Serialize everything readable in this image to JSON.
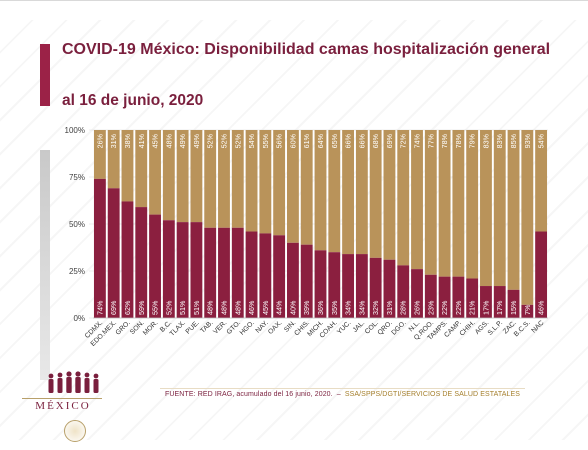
{
  "header": {
    "title": "COVID-19 México: Disponibilidad camas hospitalización general",
    "subtitle": "al 16 de junio, 2020"
  },
  "colors": {
    "occupied": "#8b1f3f",
    "available": "#b9935a",
    "title": "#7a1f3d"
  },
  "footer": {
    "source": "FUENTE: RED IRAG, acumulado del 16 junio, 2020.",
    "separator": "–",
    "org": "SSA/SPPS/DGTI/SERVICIOS DE SALUD ESTATALES"
  },
  "logo": {
    "wordmark": "MÉXICO"
  },
  "chart_data": {
    "type": "bar",
    "stacked": true,
    "title": "",
    "xlabel": "",
    "ylabel": "",
    "ylim": [
      0,
      100
    ],
    "yticks": [
      "0%",
      "25%",
      "50%",
      "75%",
      "100%"
    ],
    "categories": [
      "CDMX.",
      "EDO.MEX.",
      "GRO.",
      "SON.",
      "MOR.",
      "B.C.",
      "TLAX.",
      "PUE.",
      "TAB.",
      "VER.",
      "GTO.",
      "HGO.",
      "NAY.",
      "OAX.",
      "SIN.",
      "CHIS.",
      "MICH.",
      "COAH.",
      "YUC.",
      "JAL.",
      "COL.",
      "QRO.",
      "DGO.",
      "N.L.",
      "Q.ROO.",
      "TAMPS.",
      "CAMP.",
      "CHIH.",
      "AGS.",
      "S.L.P.",
      "ZAC.",
      "B.C.S.",
      "NAC"
    ],
    "series": [
      {
        "values": [
          74,
          69,
          62,
          59,
          55,
          52,
          51,
          51,
          48,
          48,
          48,
          46,
          45,
          44,
          40,
          39,
          36,
          35,
          34,
          34,
          32,
          31,
          28,
          26,
          23,
          22,
          22,
          21,
          17,
          17,
          15,
          7,
          46
        ],
        "labels": [
          "74%",
          "69%",
          "62%",
          "59%",
          "55%",
          "52%",
          "51%",
          "51%",
          "48%",
          "48%",
          "48%",
          "46%",
          "45%",
          "44%",
          "40%",
          "39%",
          "36%",
          "35%",
          "34%",
          "34%",
          "32%",
          "31%",
          "28%",
          "26%",
          "23%",
          "22%",
          "22%",
          "21%",
          "17%",
          "17%",
          "15%",
          "7%",
          "46%"
        ]
      },
      {
        "values": [
          26,
          31,
          38,
          41,
          45,
          48,
          49,
          49,
          52,
          52,
          52,
          54,
          55,
          56,
          60,
          61,
          64,
          65,
          66,
          66,
          68,
          69,
          72,
          74,
          77,
          78,
          78,
          79,
          83,
          83,
          85,
          93,
          54
        ],
        "labels": [
          "26%",
          "31%",
          "38%",
          "41%",
          "45%",
          "48%",
          "49%",
          "49%",
          "52%",
          "52%",
          "52%",
          "54%",
          "55%",
          "56%",
          "60%",
          "61%",
          "64%",
          "65%",
          "66%",
          "66%",
          "68%",
          "69%",
          "72%",
          "74%",
          "77%",
          "78%",
          "78%",
          "79%",
          "83%",
          "83%",
          "85%",
          "93%",
          "54%"
        ]
      }
    ]
  }
}
